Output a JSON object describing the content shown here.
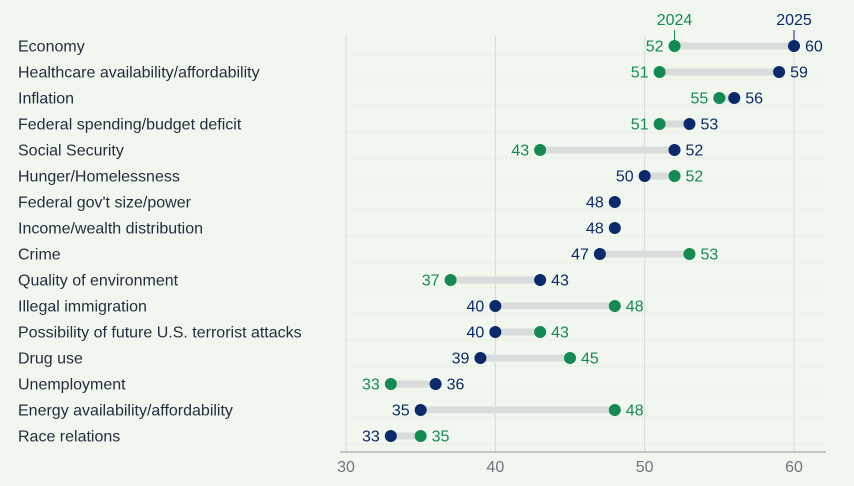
{
  "chart_data": {
    "type": "dumbbell",
    "title": "",
    "xlabel": "",
    "ylabel": "",
    "xlim": [
      30,
      62
    ],
    "xticks": [
      30,
      40,
      50,
      60
    ],
    "colors": {
      "2024": "#138a52",
      "2025": "#0b2a6b",
      "bar": "#d9dcda",
      "grid": "#d4dcd4",
      "text": "#1f2d3d",
      "tick": "#6b7480"
    },
    "series": [
      {
        "name": "2024",
        "color": "#138a52"
      },
      {
        "name": "2025",
        "color": "#0b2a6b"
      }
    ],
    "categories": [
      "Economy",
      "Healthcare availability/affordability",
      "Inflation",
      "Federal spending/budget deficit",
      "Social Security",
      "Hunger/Homelessness",
      "Federal gov't size/power",
      "Income/wealth distribution",
      "Crime",
      "Quality of environment",
      "Illegal immigration",
      "Possibility of future U.S. terrorist attacks",
      "Drug use",
      "Unemployment",
      "Energy availability/affordability",
      "Race relations"
    ],
    "values_2024": [
      52,
      51,
      55,
      51,
      43,
      52,
      null,
      null,
      53,
      37,
      48,
      43,
      45,
      33,
      48,
      35
    ],
    "values_2025": [
      60,
      59,
      56,
      53,
      52,
      50,
      48,
      48,
      47,
      43,
      40,
      40,
      39,
      36,
      35,
      33
    ]
  }
}
